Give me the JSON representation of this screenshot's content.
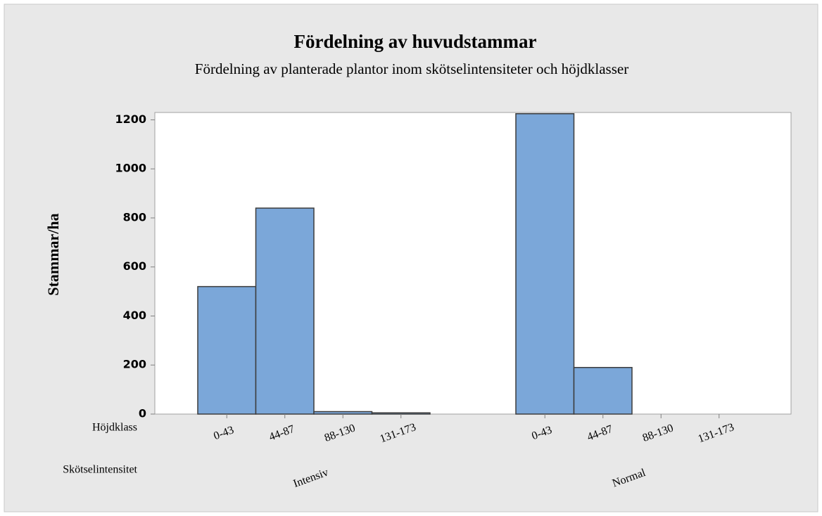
{
  "chart_data": {
    "type": "bar",
    "title": "Fördelning av huvudstammar",
    "subtitle": "Fördelning av planterade plantor inom skötselintensiteter och höjdklasser",
    "y_label": "Stammar/ha",
    "row_labels": [
      "Höjdklass",
      "Skötselintensitet"
    ],
    "color": "#7ba7d9",
    "groups": [
      {
        "name": "Intensiv",
        "categories": [
          "0-43",
          "44-87",
          "88-130",
          "131-173"
        ],
        "values": [
          520,
          840,
          10,
          5
        ]
      },
      {
        "name": "Normal",
        "categories": [
          "0-43",
          "44-87",
          "88-130",
          "131-173"
        ],
        "values": [
          1225,
          190,
          0,
          0
        ]
      }
    ],
    "ylim": [
      0,
      1230
    ],
    "yticks": [
      0,
      200,
      400,
      600,
      800,
      1000,
      1200
    ]
  }
}
